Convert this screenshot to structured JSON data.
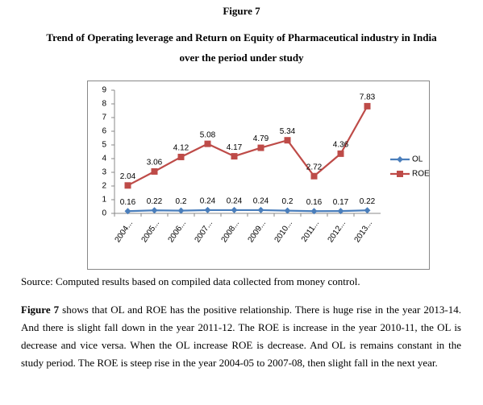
{
  "figure_label": "Figure 7",
  "title_lines": [
    "Trend of Operating leverage and Return on Equity of Pharmaceutical industry in India",
    "over the period under study"
  ],
  "chart_data": {
    "type": "line",
    "categories": [
      "2004...",
      "2005...",
      "2006...",
      "2007...",
      "2008...",
      "2009...",
      "2010...",
      "2011...",
      "2012...",
      "2013..."
    ],
    "series": [
      {
        "name": "OL",
        "color": "#4a7ebb",
        "marker": "diamond",
        "values": [
          0.16,
          0.22,
          0.2,
          0.24,
          0.24,
          0.24,
          0.2,
          0.16,
          0.17,
          0.22
        ]
      },
      {
        "name": "ROE",
        "color": "#be4b48",
        "marker": "square",
        "values": [
          2.04,
          3.06,
          4.12,
          5.08,
          4.17,
          4.79,
          5.34,
          2.72,
          4.36,
          7.83
        ]
      }
    ],
    "ylim": [
      0,
      9
    ],
    "yticks": [
      0,
      1,
      2,
      3,
      4,
      5,
      6,
      7,
      8,
      9
    ],
    "grid": false,
    "legend": "right"
  },
  "source": "Source: Computed results based on compiled data collected from money control.",
  "paragraph": {
    "lead": "Figure 7",
    "text": " shows that OL and ROE has the positive relationship. There is huge rise in the year 2013-14. And there is slight fall down in the year 2011-12. The ROE is increase in the year 2010-11, the OL is decrease and vice versa. When the OL increase ROE is decrease. And OL is remains constant in the study period. The ROE is steep rise in the year 2004-05 to 2007-08, then slight fall in the next year."
  }
}
